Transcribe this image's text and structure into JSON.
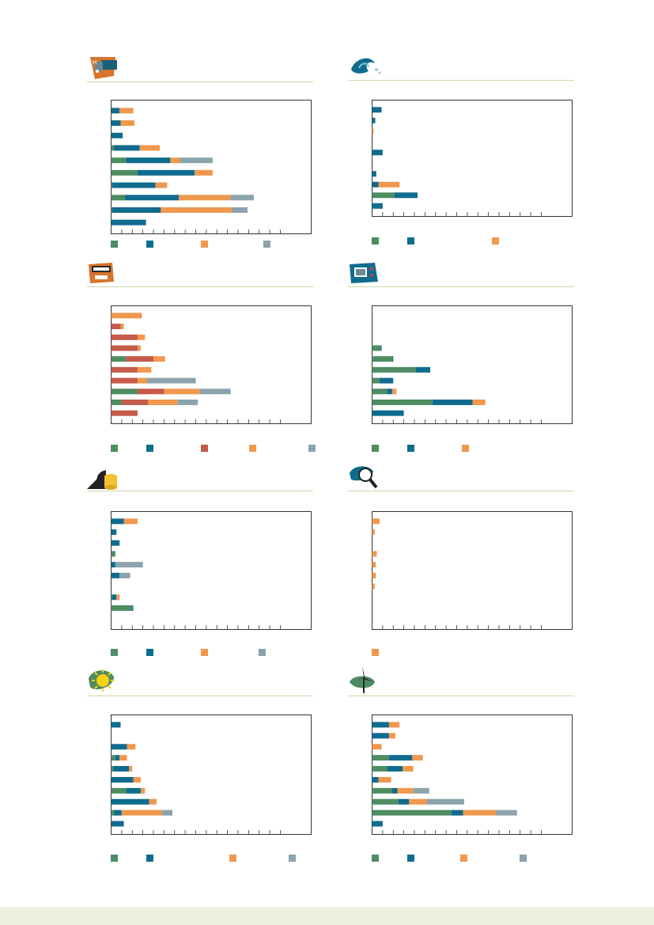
{
  "colors": {
    "green": "#4e8c61",
    "blue": "#0f6c8e",
    "red": "#c55a4a",
    "orange": "#f0984d",
    "grey": "#8ba3ac",
    "axis": "#333333",
    "rule": "#cdd8a7",
    "footer": "#eef0e1"
  },
  "chart_data": [
    {
      "type": "bar",
      "orientation": "horizontal",
      "stacked": true,
      "icon": "hydrogen-fuel-cell-icon",
      "xlim": [
        0,
        16
      ],
      "grid": false,
      "series": [
        {
          "color": "green",
          "values": [
            0,
            0,
            0,
            0.3,
            1.4,
            2.5,
            0.1,
            1.3,
            0.1,
            0
          ]
        },
        {
          "color": "blue",
          "values": [
            0.8,
            0.9,
            1.1,
            2.4,
            4.2,
            5.4,
            4.1,
            5.1,
            4.6,
            3.3
          ]
        },
        {
          "color": "orange",
          "values": [
            1.3,
            1.3,
            0,
            1.9,
            0.9,
            1.7,
            1.1,
            4.9,
            6.7,
            0
          ]
        },
        {
          "color": "grey",
          "values": [
            0,
            0,
            0,
            0,
            3.1,
            0,
            0,
            2.2,
            1.5,
            0
          ]
        }
      ]
    },
    {
      "type": "bar",
      "orientation": "horizontal",
      "stacked": true,
      "icon": "ocean-wave-icon",
      "xlim": [
        0,
        16
      ],
      "grid": false,
      "series": [
        {
          "color": "green",
          "values": [
            0,
            0,
            0,
            0,
            0,
            0,
            0,
            0,
            2.1,
            0
          ]
        },
        {
          "color": "blue",
          "values": [
            0.9,
            0.3,
            0,
            0,
            1.0,
            0,
            0.4,
            0.6,
            2.2,
            1.0
          ]
        },
        {
          "color": "orange",
          "values": [
            0,
            0,
            0.15,
            0,
            0,
            0,
            0,
            2.0,
            0,
            0
          ]
        }
      ]
    },
    {
      "type": "bar",
      "orientation": "horizontal",
      "stacked": true,
      "icon": "smart-meter-icon",
      "xlim": [
        0,
        16
      ],
      "grid": false,
      "series": [
        {
          "color": "green",
          "values": [
            0,
            0,
            0,
            0,
            1.4,
            0,
            0,
            2.5,
            1.0,
            0
          ]
        },
        {
          "color": "blue",
          "values": [
            0,
            0,
            0,
            0,
            0,
            0,
            0,
            0,
            0,
            0
          ]
        },
        {
          "color": "red",
          "values": [
            0,
            0.9,
            2.5,
            2.5,
            2.6,
            2.5,
            2.5,
            2.5,
            2.5,
            2.5
          ]
        },
        {
          "color": "orange",
          "values": [
            2.9,
            0.3,
            0.7,
            0.3,
            1.1,
            1.3,
            0.9,
            3.4,
            2.8,
            0
          ]
        },
        {
          "color": "grey",
          "values": [
            0,
            0,
            0,
            0,
            0,
            0,
            4.6,
            2.9,
            1.9,
            0
          ]
        }
      ]
    },
    {
      "type": "bar",
      "orientation": "horizontal",
      "stacked": true,
      "icon": "power-electronics-icon",
      "xlim": [
        0,
        16
      ],
      "grid": false,
      "series": [
        {
          "color": "green",
          "values": [
            0,
            0,
            0,
            0.8,
            1.9,
            4.1,
            0.7,
            1.4,
            5.7,
            0
          ]
        },
        {
          "color": "blue",
          "values": [
            0,
            0,
            0,
            0.1,
            0.1,
            1.4,
            1.3,
            0.5,
            3.8,
            3.0
          ]
        },
        {
          "color": "orange",
          "values": [
            0,
            0,
            0,
            0,
            0,
            0,
            0,
            0.4,
            1.2,
            0
          ]
        }
      ]
    },
    {
      "type": "bar",
      "orientation": "horizontal",
      "stacked": true,
      "icon": "coins-storage-icon",
      "xlim": [
        0,
        16
      ],
      "grid": false,
      "series": [
        {
          "color": "green",
          "values": [
            0,
            0,
            0,
            0.4,
            0,
            0,
            0,
            0.1,
            2.0,
            0
          ]
        },
        {
          "color": "blue",
          "values": [
            1.2,
            0.5,
            0.8,
            0,
            0.4,
            0.8,
            0,
            0.4,
            0.1,
            0
          ]
        },
        {
          "color": "orange",
          "values": [
            1.3,
            0,
            0,
            0,
            0,
            0,
            0,
            0.3,
            0,
            0
          ]
        },
        {
          "color": "grey",
          "values": [
            0,
            0,
            0,
            0,
            2.6,
            1.0,
            0,
            0,
            0,
            0
          ]
        }
      ]
    },
    {
      "type": "bar",
      "orientation": "horizontal",
      "stacked": true,
      "icon": "magnifier-inspection-icon",
      "xlim": [
        0,
        16
      ],
      "grid": false,
      "series": [
        {
          "color": "orange",
          "values": [
            0.7,
            0.25,
            0,
            0.45,
            0.35,
            0.35,
            0.25,
            0,
            0,
            0
          ]
        }
      ]
    },
    {
      "type": "bar",
      "orientation": "horizontal",
      "stacked": true,
      "icon": "sun-solar-icon",
      "xlim": [
        0,
        16
      ],
      "grid": false,
      "series": [
        {
          "color": "green",
          "values": [
            0,
            0,
            0,
            0.4,
            0.2,
            0,
            1.4,
            0,
            0.3,
            0
          ]
        },
        {
          "color": "blue",
          "values": [
            0.9,
            0,
            1.5,
            0.4,
            1.5,
            2.1,
            1.4,
            3.6,
            0.7,
            1.2
          ]
        },
        {
          "color": "orange",
          "values": [
            0,
            0,
            0.8,
            0.7,
            0.3,
            0.7,
            0.4,
            0.7,
            3.8,
            0
          ]
        },
        {
          "color": "grey",
          "values": [
            0,
            0,
            0,
            0,
            0,
            0,
            0,
            0,
            1.0,
            0
          ]
        }
      ]
    },
    {
      "type": "bar",
      "orientation": "horizontal",
      "stacked": true,
      "icon": "wind-turbine-icon",
      "xlim": [
        0,
        16
      ],
      "grid": false,
      "series": [
        {
          "color": "green",
          "values": [
            0,
            0,
            0,
            1.6,
            1.4,
            0,
            1.9,
            2.5,
            7.5,
            0
          ]
        },
        {
          "color": "blue",
          "values": [
            1.6,
            1.6,
            0,
            2.2,
            1.5,
            0.6,
            0.5,
            1.0,
            1.1,
            1.0
          ]
        },
        {
          "color": "orange",
          "values": [
            1.0,
            0.6,
            0.9,
            1.0,
            1.0,
            1.2,
            1.5,
            1.7,
            3.1,
            0
          ]
        },
        {
          "color": "grey",
          "values": [
            0,
            0,
            0,
            0,
            0,
            0,
            1.5,
            3.5,
            2.0,
            0
          ]
        }
      ]
    }
  ],
  "legends": [
    [
      "green",
      "blue",
      "orange",
      "grey"
    ],
    [
      "green",
      "blue",
      "orange"
    ],
    [
      "green",
      "blue",
      "red",
      "orange",
      "grey"
    ],
    [
      "green",
      "blue",
      "orange"
    ],
    [
      "green",
      "blue",
      "orange",
      "grey"
    ],
    [
      "orange"
    ],
    [
      "green",
      "blue",
      "orange",
      "grey"
    ],
    [
      "green",
      "blue",
      "orange",
      "grey"
    ]
  ]
}
